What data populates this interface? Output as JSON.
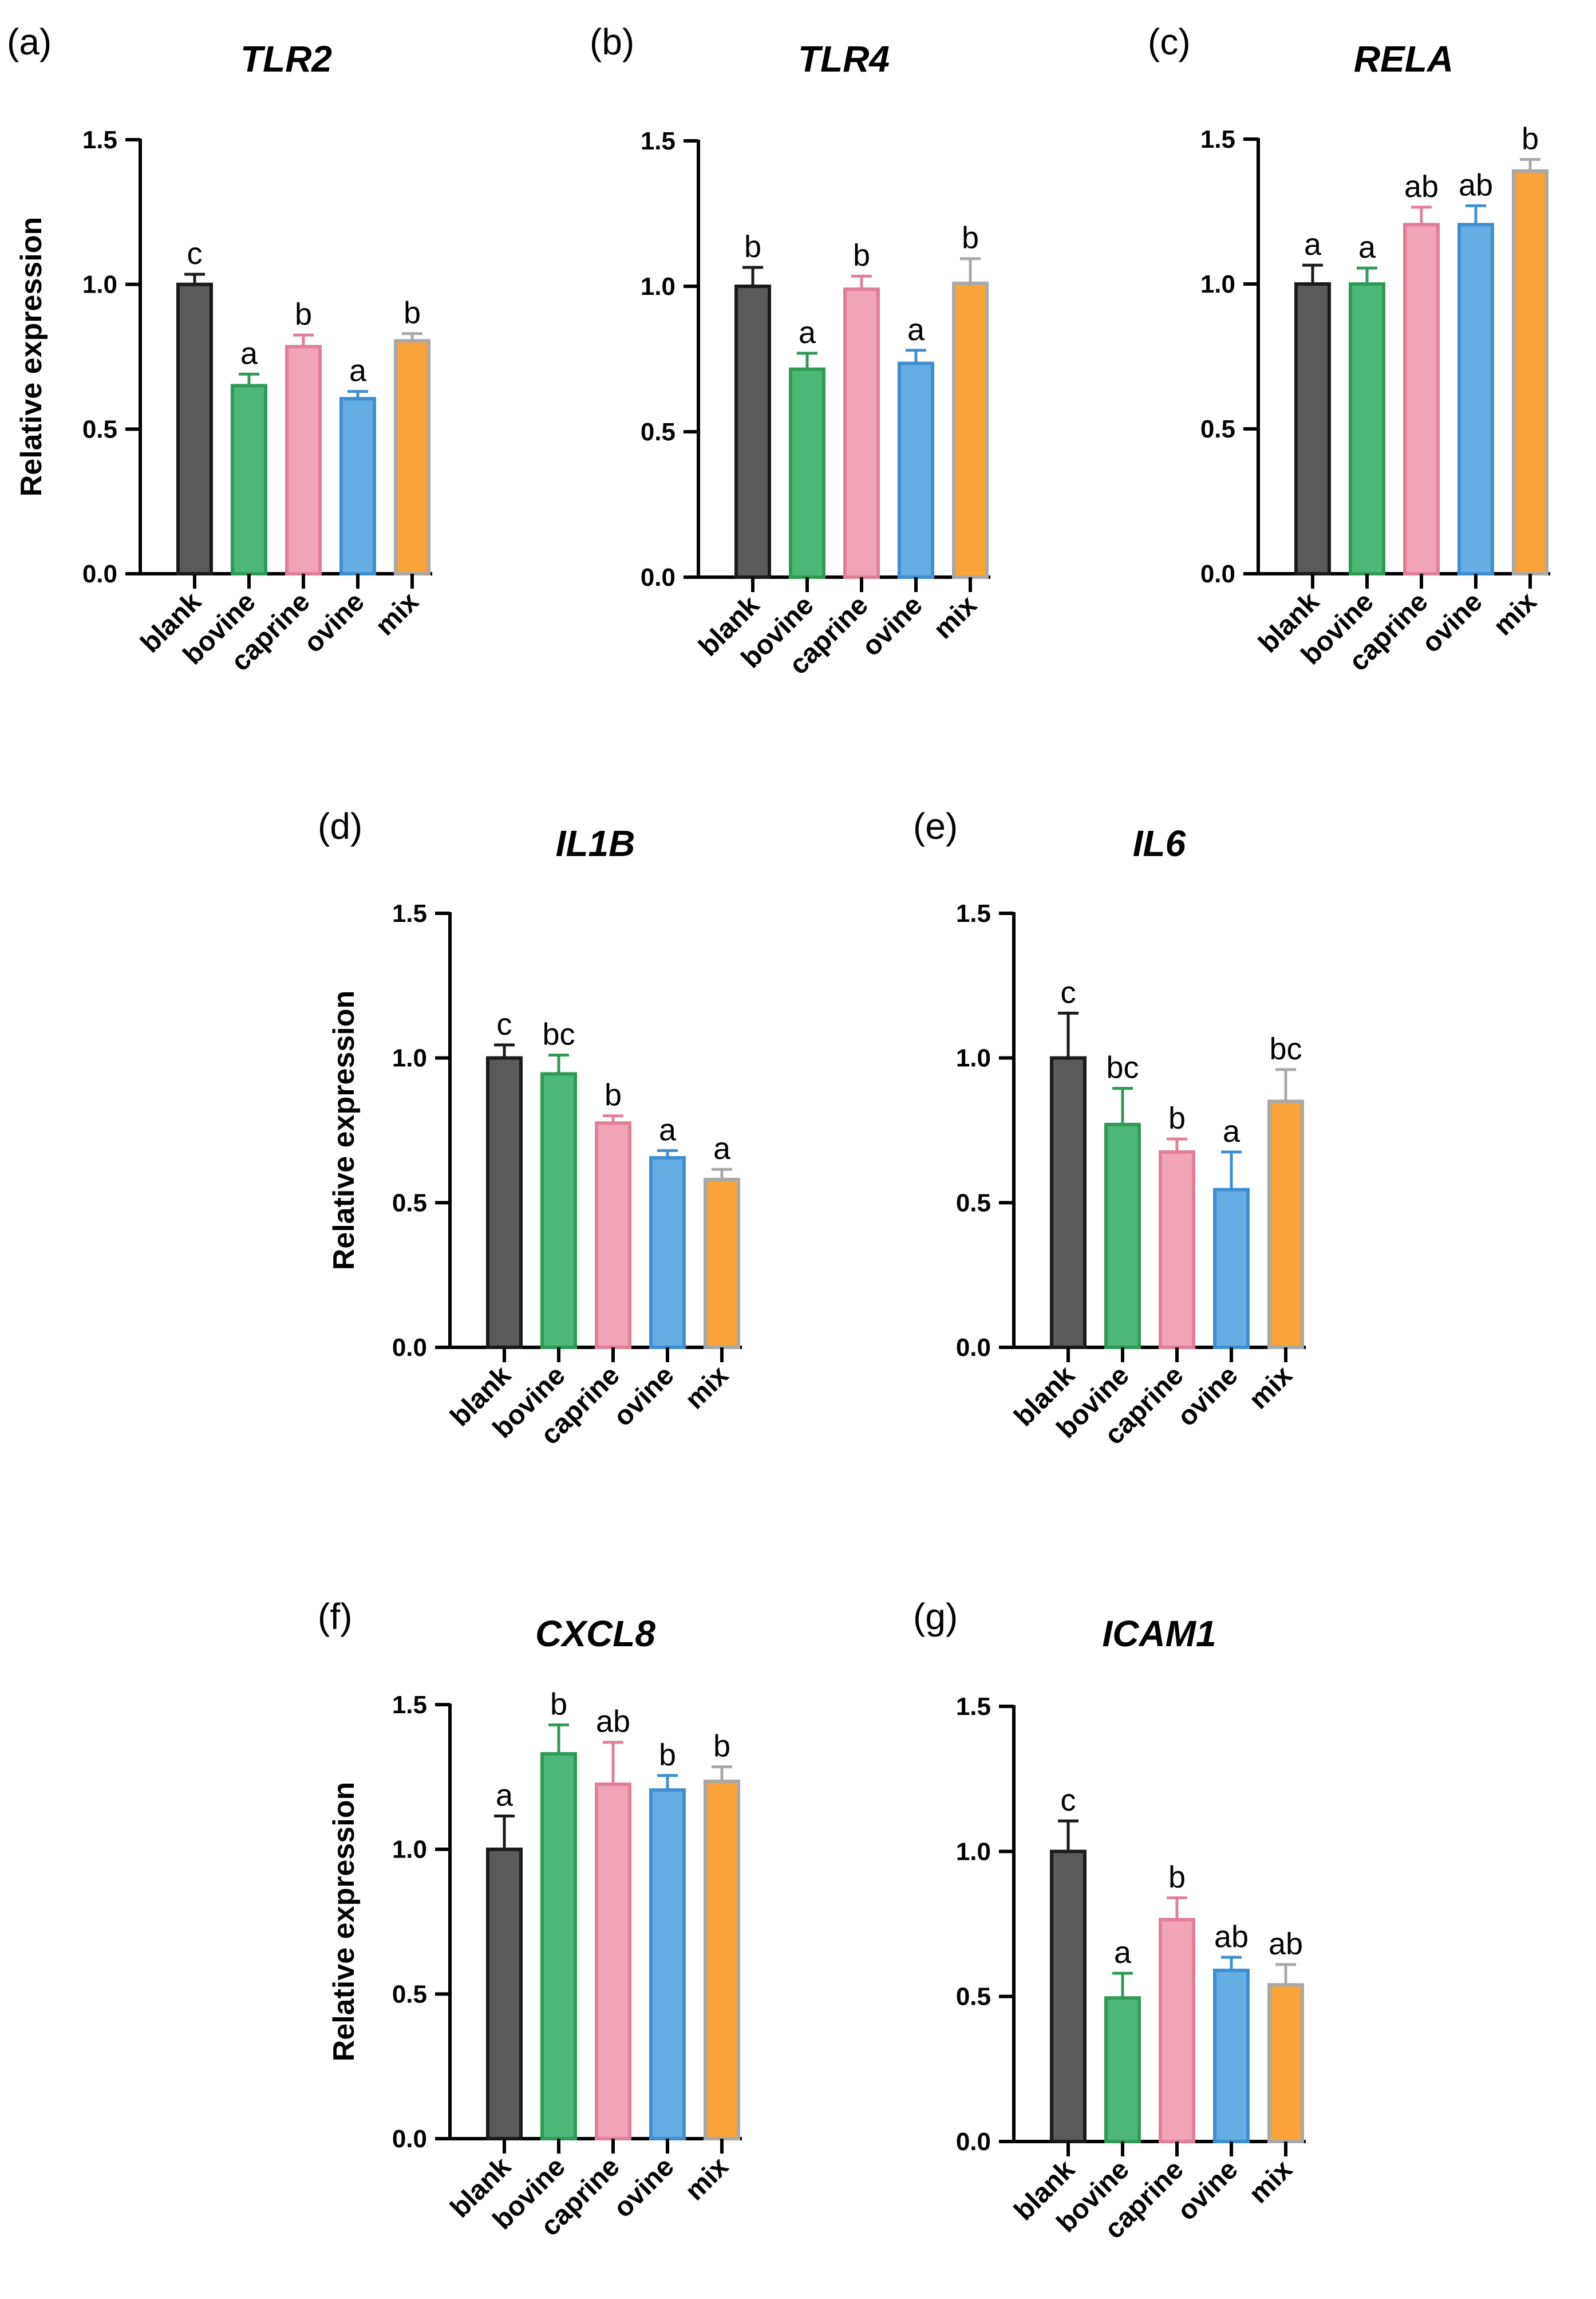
{
  "chart_data": [
    {
      "type": "bar",
      "panel": "(a)",
      "title": "TLR2",
      "ylabel": "Relative expression",
      "categories": [
        "blank",
        "bovine",
        "caprine",
        "ovine",
        "mix"
      ],
      "values": [
        1.0,
        0.65,
        0.785,
        0.605,
        0.805
      ],
      "errors": [
        0.035,
        0.04,
        0.04,
        0.025,
        0.025
      ],
      "significance": [
        "c",
        "a",
        "b",
        "a",
        "b"
      ],
      "ylim": [
        0,
        1.5
      ],
      "yticks": [
        "0.0",
        "0.5",
        "1.0",
        "1.5"
      ]
    },
    {
      "type": "bar",
      "panel": "(b)",
      "title": "TLR4",
      "ylabel": "",
      "categories": [
        "blank",
        "bovine",
        "caprine",
        "ovine",
        "mix"
      ],
      "values": [
        1.0,
        0.715,
        0.99,
        0.735,
        1.01
      ],
      "errors": [
        0.065,
        0.055,
        0.045,
        0.045,
        0.085
      ],
      "significance": [
        "b",
        "a",
        "b",
        "a",
        "b"
      ],
      "ylim": [
        0,
        1.5
      ],
      "yticks": [
        "0.0",
        "0.5",
        "1.0",
        "1.5"
      ]
    },
    {
      "type": "bar",
      "panel": "(c)",
      "title": "RELA",
      "ylabel": "",
      "categories": [
        "blank",
        "bovine",
        "caprine",
        "ovine",
        "mix"
      ],
      "values": [
        1.0,
        1.0,
        1.205,
        1.205,
        1.39
      ],
      "errors": [
        0.065,
        0.055,
        0.06,
        0.065,
        0.04
      ],
      "significance": [
        "a",
        "a",
        "ab",
        "ab",
        "b"
      ],
      "ylim": [
        0,
        1.5
      ],
      "yticks": [
        "0.0",
        "0.5",
        "1.0",
        "1.5"
      ]
    },
    {
      "type": "bar",
      "panel": "(d)",
      "title": "IL1B",
      "ylabel": "Relative expression",
      "categories": [
        "blank",
        "bovine",
        "caprine",
        "ovine",
        "mix"
      ],
      "values": [
        1.0,
        0.945,
        0.775,
        0.655,
        0.58
      ],
      "errors": [
        0.045,
        0.065,
        0.025,
        0.025,
        0.035
      ],
      "significance": [
        "c",
        "bc",
        "b",
        "a",
        "a"
      ],
      "ylim": [
        0,
        1.5
      ],
      "yticks": [
        "0.0",
        "0.5",
        "1.0",
        "1.5"
      ]
    },
    {
      "type": "bar",
      "panel": "(e)",
      "title": "IL6",
      "ylabel": "",
      "categories": [
        "blank",
        "bovine",
        "caprine",
        "ovine",
        "mix"
      ],
      "values": [
        1.0,
        0.77,
        0.675,
        0.545,
        0.85
      ],
      "errors": [
        0.155,
        0.125,
        0.045,
        0.13,
        0.11
      ],
      "significance": [
        "c",
        "bc",
        "b",
        "a",
        "bc"
      ],
      "ylim": [
        0,
        1.5
      ],
      "yticks": [
        "0.0",
        "0.5",
        "1.0",
        "1.5"
      ]
    },
    {
      "type": "bar",
      "panel": "(f)",
      "title": "CXCL8",
      "ylabel": "Relative expression",
      "categories": [
        "blank",
        "bovine",
        "caprine",
        "ovine",
        "mix"
      ],
      "values": [
        1.0,
        1.33,
        1.225,
        1.205,
        1.235
      ],
      "errors": [
        0.115,
        0.1,
        0.145,
        0.05,
        0.05
      ],
      "significance": [
        "a",
        "b",
        "ab",
        "b",
        "b"
      ],
      "ylim": [
        0,
        1.5
      ],
      "yticks": [
        "0.0",
        "0.5",
        "1.0",
        "1.5"
      ]
    },
    {
      "type": "bar",
      "panel": "(g)",
      "title": "ICAM1",
      "ylabel": "",
      "categories": [
        "blank",
        "bovine",
        "caprine",
        "ovine",
        "mix"
      ],
      "values": [
        1.0,
        0.495,
        0.765,
        0.59,
        0.54
      ],
      "errors": [
        0.105,
        0.085,
        0.075,
        0.045,
        0.07
      ],
      "significance": [
        "c",
        "a",
        "b",
        "ab",
        "ab"
      ],
      "ylim": [
        0,
        1.5
      ],
      "yticks": [
        "0.0",
        "0.5",
        "1.0",
        "1.5"
      ]
    }
  ],
  "colors": {
    "blank": {
      "fill": "#5a5a5a",
      "stroke": "#1a1a1a"
    },
    "bovine": {
      "fill": "#4cb877",
      "stroke": "#2f9a55"
    },
    "caprine": {
      "fill": "#f1a3b8",
      "stroke": "#e07f99"
    },
    "ovine": {
      "fill": "#66ade3",
      "stroke": "#3e8fd2"
    },
    "mix": {
      "fill": "#faa338",
      "stroke": "#a8a8a8"
    },
    "axis": "#000000"
  }
}
